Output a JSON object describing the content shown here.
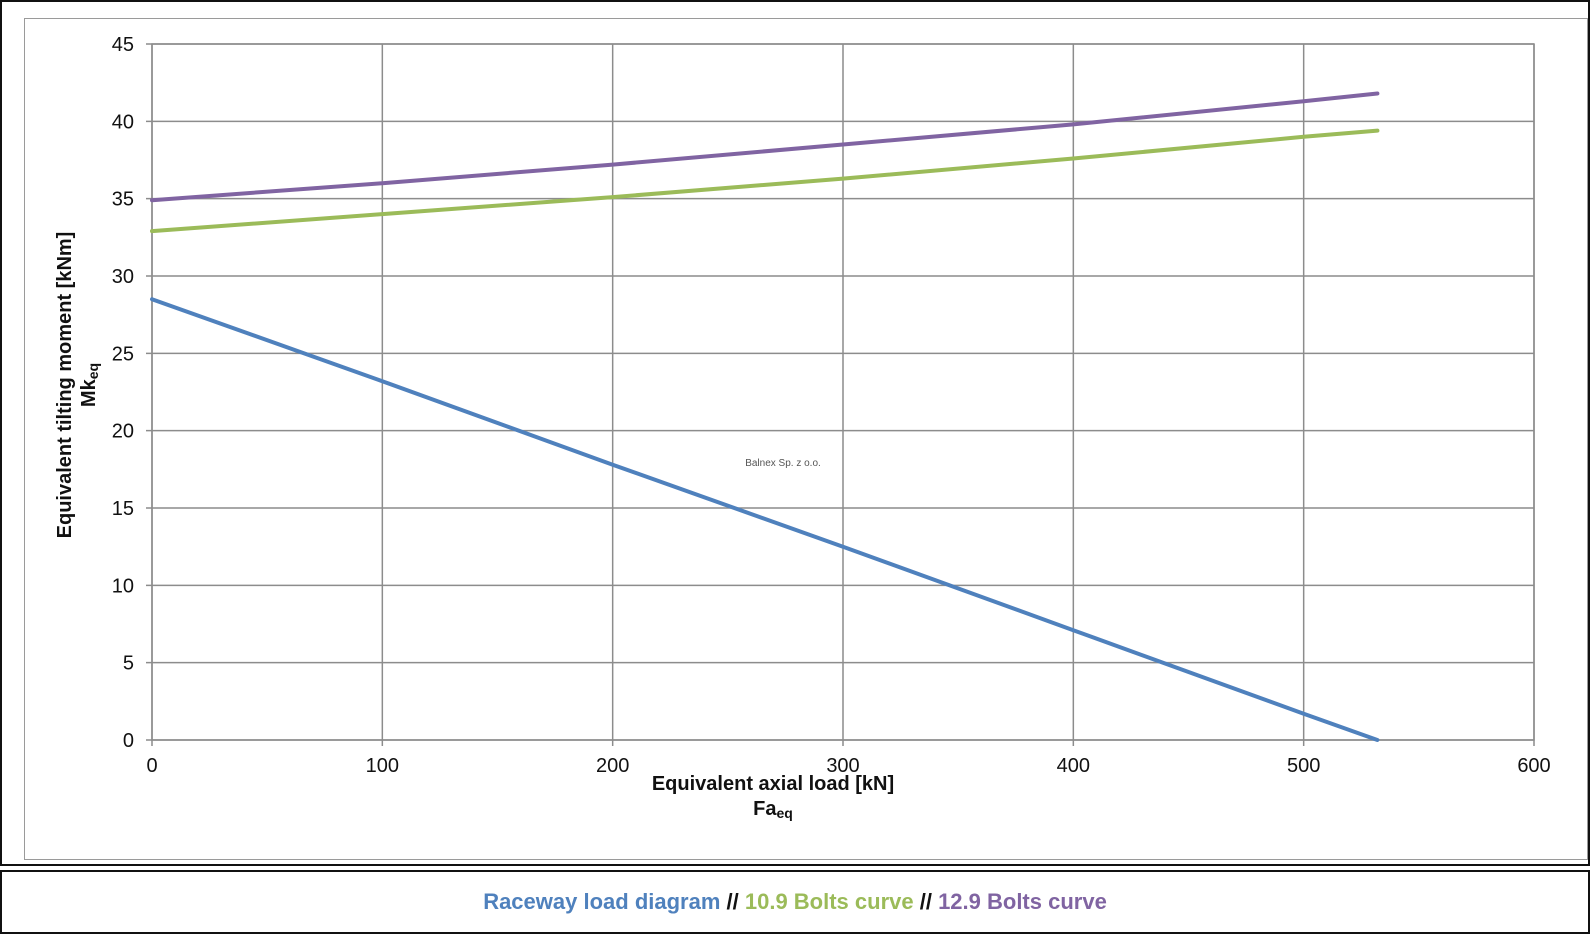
{
  "chart_data": {
    "type": "line",
    "xlabel": "Equivalent axial load [kN]",
    "xlabel_sub": {
      "main": "Fa",
      "sub": "eq"
    },
    "ylabel": "Equivalent tilting moment [kNm]",
    "ylabel_sub": {
      "main": "Mk",
      "sub": "eq"
    },
    "xlim": [
      0,
      600
    ],
    "ylim": [
      0,
      45
    ],
    "xticks": [
      "0",
      "100",
      "200",
      "300",
      "400",
      "500",
      "600"
    ],
    "yticks": [
      "0",
      "5",
      "10",
      "15",
      "20",
      "25",
      "30",
      "35",
      "40",
      "45"
    ],
    "grid": true,
    "annotation": "Balnex Sp. z o.o.",
    "series": [
      {
        "name": "Raceway load diagram",
        "color": "#4f81bd",
        "x": [
          0,
          100,
          200,
          300,
          400,
          500,
          532
        ],
        "y": [
          28.5,
          23.2,
          17.8,
          12.5,
          7.1,
          1.7,
          0
        ]
      },
      {
        "name": "10.9 Bolts curve",
        "color": "#9bbb59",
        "x": [
          0,
          100,
          200,
          300,
          400,
          500,
          532
        ],
        "y": [
          32.9,
          34.0,
          35.1,
          36.3,
          37.6,
          39.0,
          39.4
        ]
      },
      {
        "name": "12.9 Bolts curve",
        "color": "#8064a2",
        "x": [
          0,
          100,
          200,
          300,
          400,
          500,
          532
        ],
        "y": [
          34.9,
          36.0,
          37.2,
          38.5,
          39.8,
          41.3,
          41.8
        ]
      }
    ],
    "legend": {
      "placement": "bottom",
      "separator": " // "
    }
  }
}
